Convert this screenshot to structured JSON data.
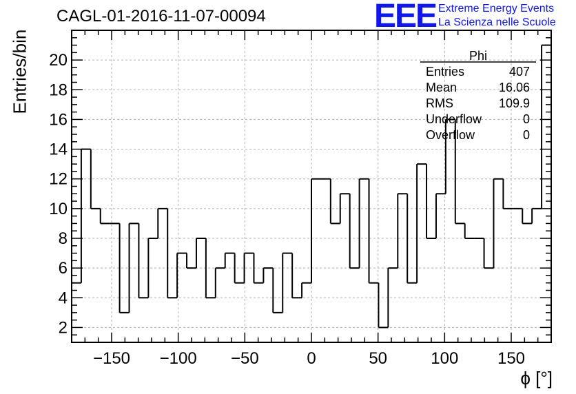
{
  "title": "CAGL-01-2016-11-07-00094",
  "logo": {
    "letters": "EEE",
    "line1": "Extreme Energy Events",
    "line2": "La Scienza nelle Scuole",
    "color": "#1018e8"
  },
  "stats": {
    "name": "Phi",
    "rows": [
      {
        "label": "Entries",
        "value": "407"
      },
      {
        "label": "Mean",
        "value": "16.06"
      },
      {
        "label": "RMS",
        "value": "109.9"
      },
      {
        "label": "Underflow",
        "value": "0"
      },
      {
        "label": "Overflow",
        "value": "0"
      }
    ]
  },
  "chart_data": {
    "type": "histogram",
    "title": "CAGL-01-2016-11-07-00094",
    "xlabel": "ϕ [°]",
    "ylabel": "Entries/bin",
    "xlim": [
      -180,
      180
    ],
    "ylim": [
      1,
      22
    ],
    "bin_width": 7.2,
    "x_ticks": [
      -150,
      -100,
      -50,
      0,
      50,
      100,
      150
    ],
    "x_tick_labels": [
      "−150",
      "−100",
      "−50",
      "0",
      "50",
      "100",
      "150"
    ],
    "y_ticks": [
      2,
      4,
      6,
      8,
      10,
      12,
      14,
      16,
      18,
      20
    ],
    "y_tick_labels": [
      "2",
      "4",
      "6",
      "8",
      "10",
      "12",
      "14",
      "16",
      "18",
      "20"
    ],
    "grid": true,
    "line_color": "#000000",
    "values": [
      5,
      14,
      10,
      9,
      9,
      3,
      9,
      4,
      8,
      10,
      4,
      7,
      6,
      8,
      4,
      6,
      7,
      5,
      7,
      5,
      6,
      3,
      7,
      4,
      5,
      12,
      12,
      9,
      11,
      6,
      12,
      5,
      2,
      6,
      11,
      5,
      13,
      8,
      11,
      16,
      9,
      8,
      8,
      6,
      12,
      10,
      10,
      9,
      10,
      21
    ]
  }
}
